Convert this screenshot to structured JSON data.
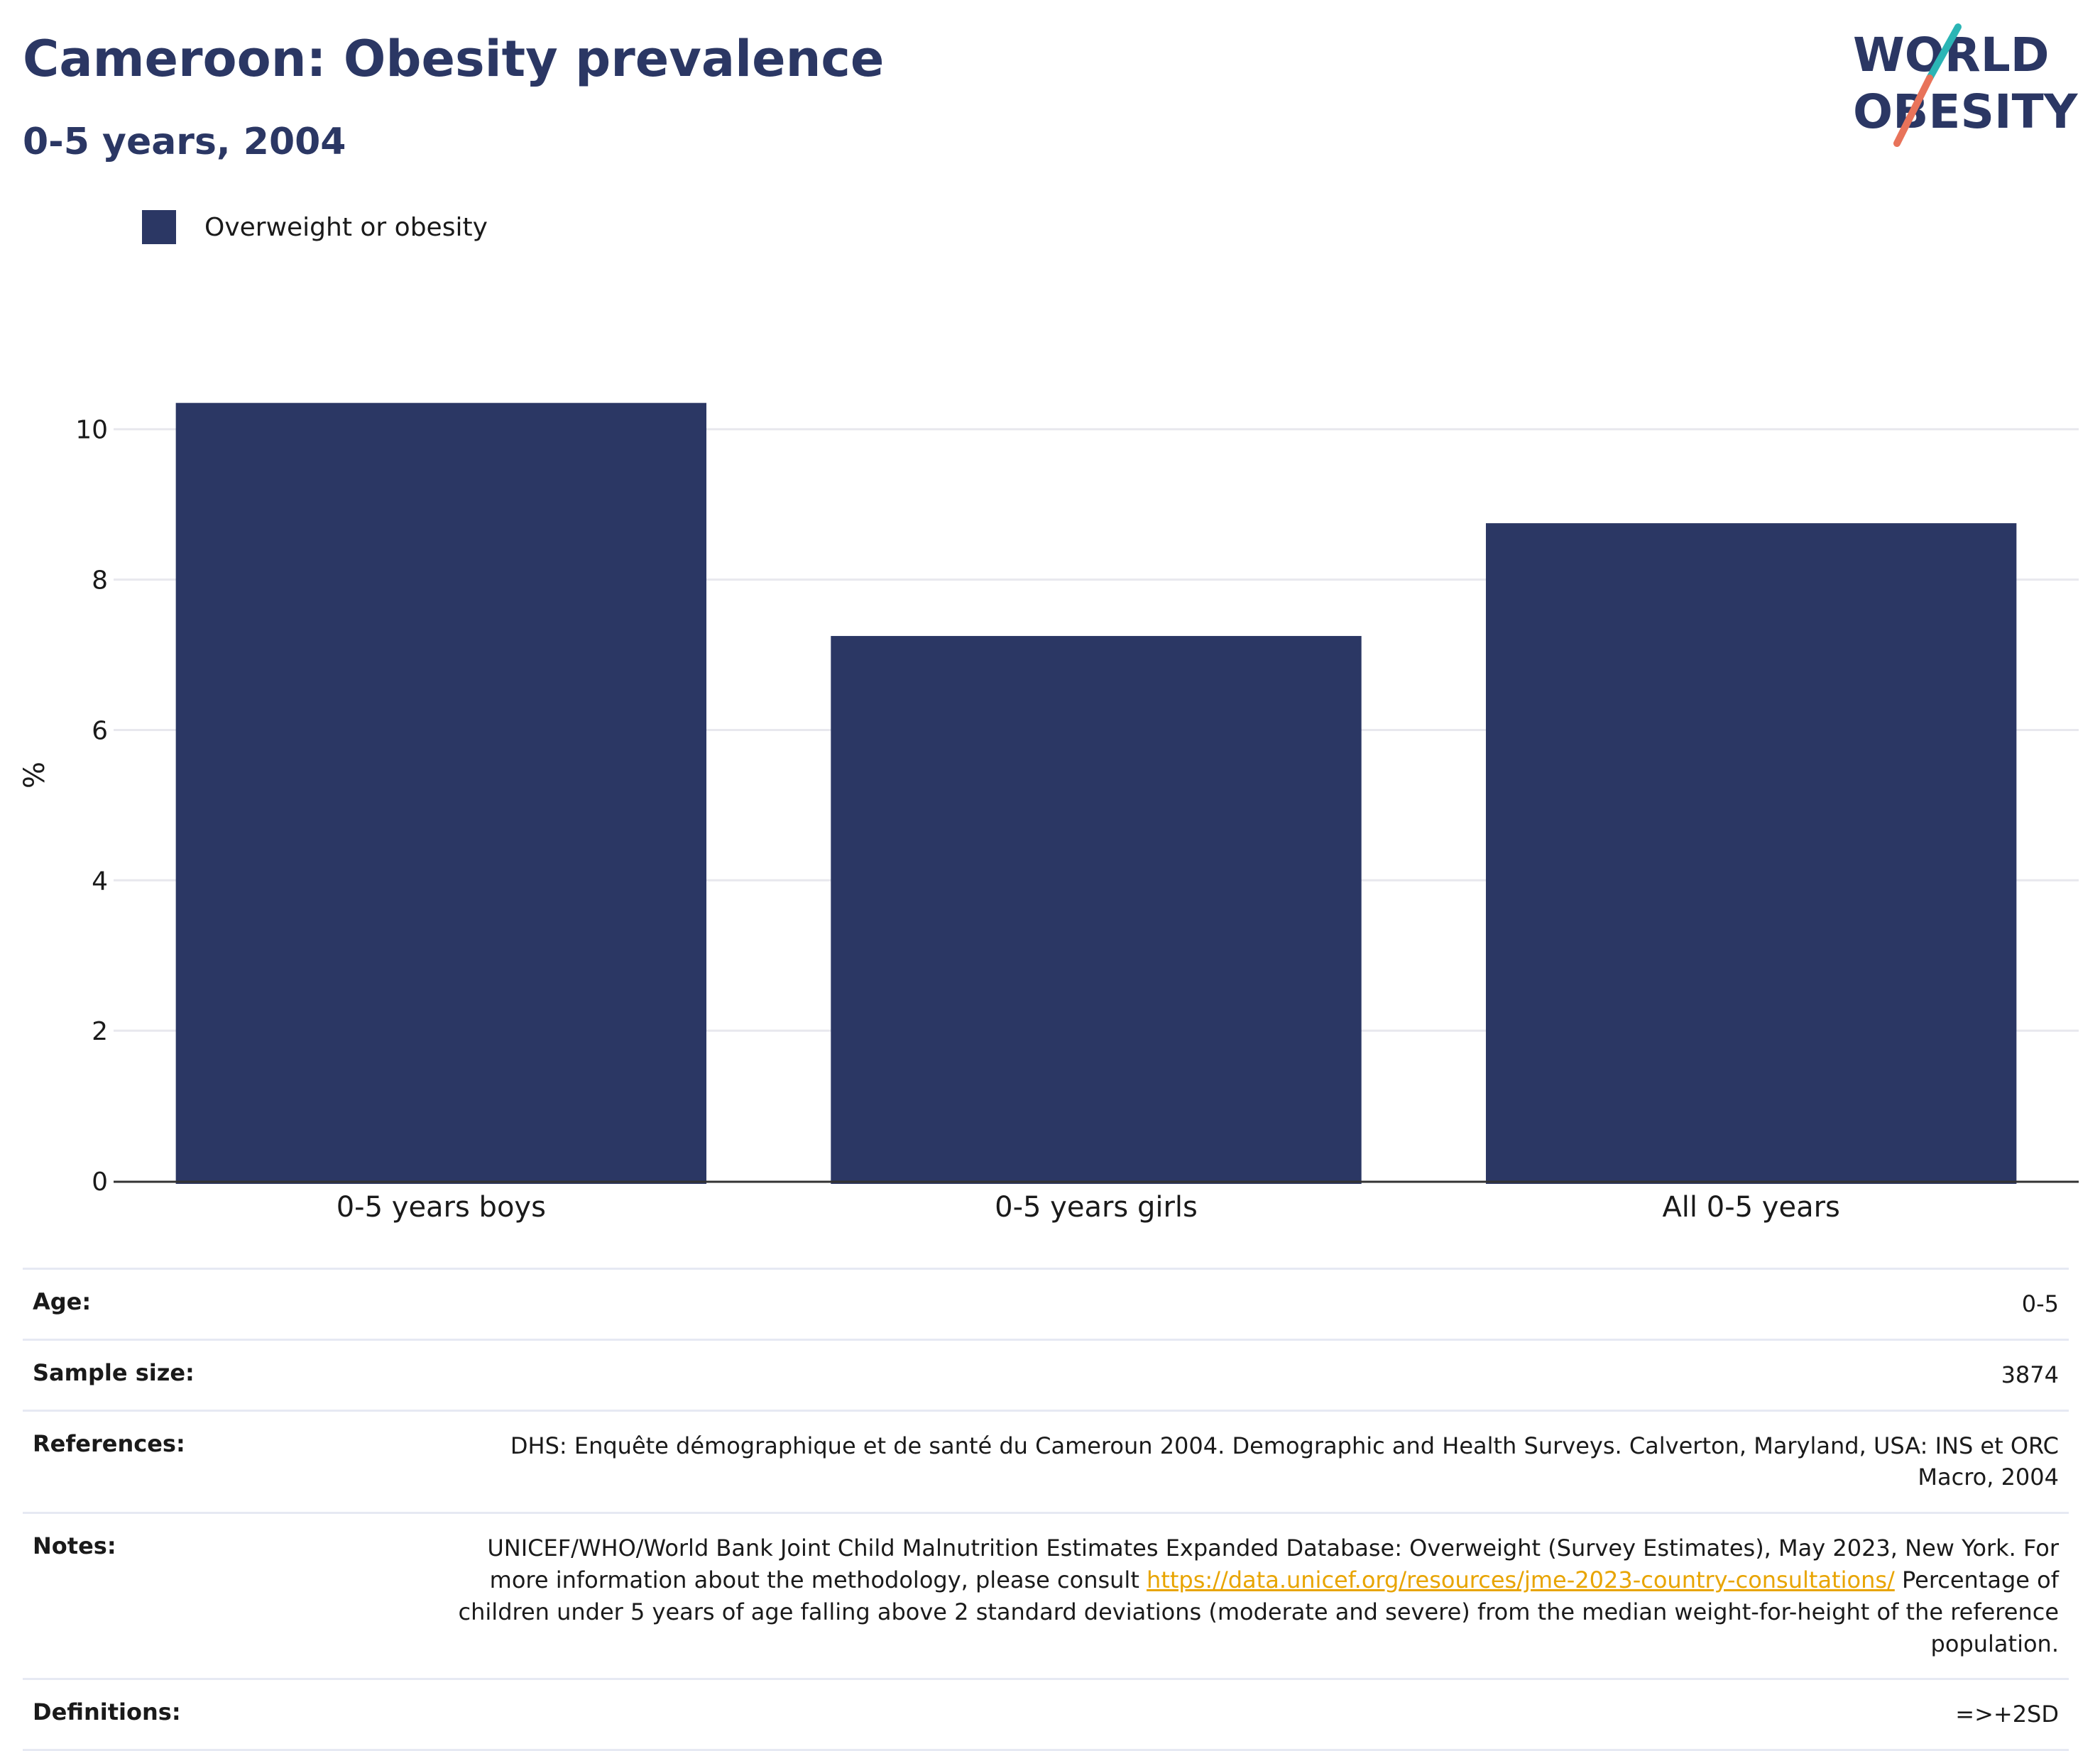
{
  "header": {
    "title": "Cameroon: Obesity prevalence",
    "subtitle": "0-5 years, 2004",
    "logo_line1": "WORLD",
    "logo_line2": "OBESITY"
  },
  "legend": {
    "label": "Overweight or obesity"
  },
  "colors": {
    "bar": "#2b3764",
    "grid": "#e8e8ee",
    "axis": "#333333",
    "logo_teal": "#2bb5b5",
    "logo_coral": "#e8735a",
    "link": "#e8a400"
  },
  "chart_data": {
    "type": "bar",
    "categories": [
      "0-5 years boys",
      "0-5 years girls",
      "All 0-5 years"
    ],
    "series": [
      {
        "name": "Overweight or obesity",
        "values": [
          10.35,
          7.25,
          8.75
        ]
      }
    ],
    "ylabel": "%",
    "ylim": [
      0,
      10.8
    ],
    "yticks": [
      0,
      2,
      4,
      6,
      8,
      10
    ],
    "grid": true,
    "legend_position": "top-left"
  },
  "info": {
    "age_label": "Age:",
    "age_value": "0-5",
    "sample_label": "Sample size:",
    "sample_value": "3874",
    "references_label": "References:",
    "references_value": "DHS: Enquête démographique et de santé du Cameroun 2004. Demographic and Health Surveys. Calverton, Maryland, USA: INS et ORC Macro, 2004",
    "notes_label": "Notes:",
    "notes_text1": "UNICEF/WHO/World Bank Joint Child Malnutrition Estimates Expanded Database: Overweight (Survey Estimates), May 2023, New York. For more information about the methodology, please consult ",
    "notes_link": "https://data.unicef.org/resources/jme-2023-country-consultations/",
    "notes_text2": " Percentage of children under 5 years of age falling above 2 standard deviations (moderate and severe) from the median weight-for-height of the reference population.",
    "definitions_label": "Definitions:",
    "definitions_value": "=>+2SD"
  }
}
